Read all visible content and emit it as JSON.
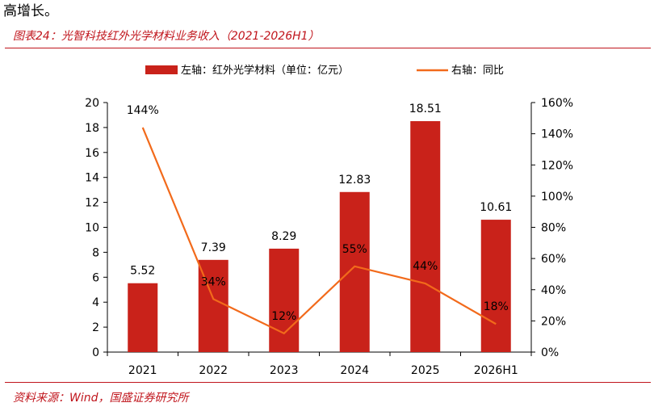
{
  "intro_text": "高增长。",
  "figure_title": "图表24：光智科技红外光学材料业务收入（2021-2026H1）",
  "source": "资料来源：Wind，国盛证券研究所",
  "colors": {
    "accent": "#c0151c",
    "bar": "#c9221a",
    "line": "#f26a1b"
  },
  "chart_data": {
    "type": "bar",
    "categories": [
      "2021",
      "2022",
      "2023",
      "2024",
      "2025",
      "2026H1"
    ],
    "series": [
      {
        "name": "左轴：红外光学材料（单位：亿元）",
        "type": "bar",
        "axis": "left",
        "values": [
          5.52,
          7.39,
          8.29,
          12.83,
          18.51,
          10.61
        ],
        "labels": [
          "5.52",
          "7.39",
          "8.29",
          "12.83",
          "18.51",
          "10.61"
        ]
      },
      {
        "name": "右轴：同比",
        "type": "line",
        "axis": "right",
        "values": [
          144,
          34,
          12,
          55,
          44,
          18
        ],
        "labels": [
          "144%",
          "34%",
          "12%",
          "55%",
          "44%",
          "18%"
        ]
      }
    ],
    "y_left": {
      "min": 0,
      "max": 20,
      "step": 2,
      "ticks": [
        "0",
        "2",
        "4",
        "6",
        "8",
        "10",
        "12",
        "14",
        "16",
        "18",
        "20"
      ]
    },
    "y_right": {
      "min": 0,
      "max": 160,
      "step": 20,
      "ticks": [
        "0%",
        "20%",
        "40%",
        "60%",
        "80%",
        "100%",
        "120%",
        "140%",
        "160%"
      ]
    },
    "legend_position": "top",
    "grid": false
  }
}
